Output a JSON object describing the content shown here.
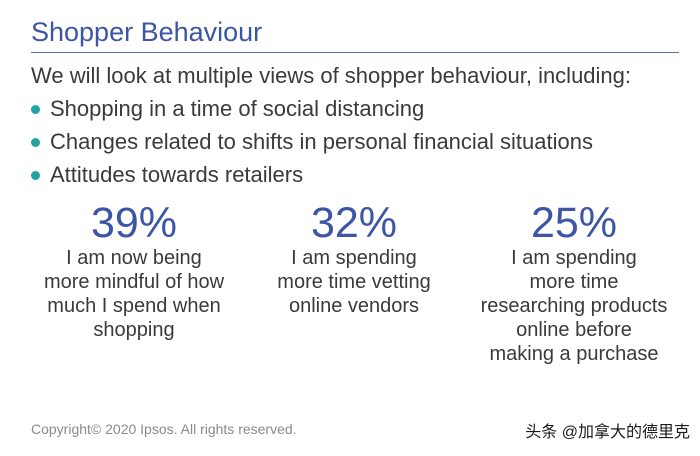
{
  "slide": {
    "title": "Shopper Behaviour",
    "intro": "We will look at multiple views of shopper behaviour, including:",
    "bullets": [
      "Shopping in a time of social distancing",
      "Changes related to shifts in personal financial situations",
      "Attitudes towards retailers"
    ],
    "stats": [
      {
        "value": "39%",
        "caption_lines": [
          "I am now being",
          "more mindful of how",
          "much I spend when",
          "shopping"
        ]
      },
      {
        "value": "32%",
        "caption_lines": [
          "I am spending",
          "more time vetting",
          "online vendors"
        ]
      },
      {
        "value": "25%",
        "caption_lines": [
          "I am spending",
          "more time",
          "researching products",
          "online before",
          "making a purchase"
        ]
      }
    ],
    "copyright": "Copyright© 2020 Ipsos. All rights reserved.",
    "watermark": "头条 @加拿大的德里克"
  },
  "colors": {
    "accent": "#3d55a5",
    "bullet": "#1fa3a3",
    "body_text": "#3a3a3a",
    "muted_text": "#8a8a8a"
  }
}
